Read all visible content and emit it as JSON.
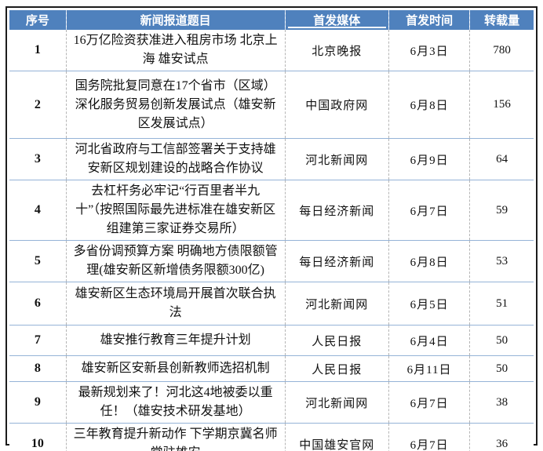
{
  "colors": {
    "header_bg": "#4F81BD",
    "header_text": "#FFFFFF",
    "row_divider": "#95B3D7",
    "col_divider": "#B5B5B5",
    "outer_border": "#1C1C1C"
  },
  "table": {
    "headers": [
      "序号",
      "新闻报道题目",
      "首发媒体",
      "首发时间",
      "转载量"
    ],
    "rows": [
      {
        "index": "1",
        "title": "16万亿险资获准进入租房市场 北京上海 雄安试点",
        "media": "北京晚报",
        "date": "6月3日",
        "reposts": "780"
      },
      {
        "index": "2",
        "title": "国务院批复同意在17个省市（区域）深化服务贸易创新发展试点（雄安新区发展试点）",
        "media": "中国政府网",
        "date": "6月8日",
        "reposts": "156"
      },
      {
        "index": "3",
        "title": "河北省政府与工信部签署关于支持雄安新区规划建设的战略合作协议",
        "media": "河北新闻网",
        "date": "6月9日",
        "reposts": "64"
      },
      {
        "index": "4",
        "title": "去杠杆务必牢记“行百里者半九十”（按照国际最先进标准在雄安新区组建第三家证券交易所）",
        "media": "每日经济新闻",
        "date": "6月7日",
        "reposts": "59"
      },
      {
        "index": "5",
        "title": "多省份调预算方案 明确地方债限额管理(雄安新区新增债务限额300亿)",
        "media": "每日经济新闻",
        "date": "6月8日",
        "reposts": "53"
      },
      {
        "index": "6",
        "title": "雄安新区生态环境局开展首次联合执法",
        "media": "河北新闻网",
        "date": "6月5日",
        "reposts": "51"
      },
      {
        "index": "7",
        "title": "雄安推行教育三年提升计划",
        "media": "人民日报",
        "date": "6月4日",
        "reposts": "50"
      },
      {
        "index": "8",
        "title": "雄安新区安新县创新教师选招机制",
        "media": "人民日报",
        "date": "6月11日",
        "reposts": "50"
      },
      {
        "index": "9",
        "title": "最新规划来了！河北这4地被委以重任！（雄安技术研发基地）",
        "media": "河北新闻网",
        "date": "6月7日",
        "reposts": "38"
      },
      {
        "index": "10",
        "title": "三年教育提升新动作 下学期京冀名师常驻雄安",
        "media": "中国雄安官网",
        "date": "6月7日",
        "reposts": "36"
      }
    ]
  }
}
